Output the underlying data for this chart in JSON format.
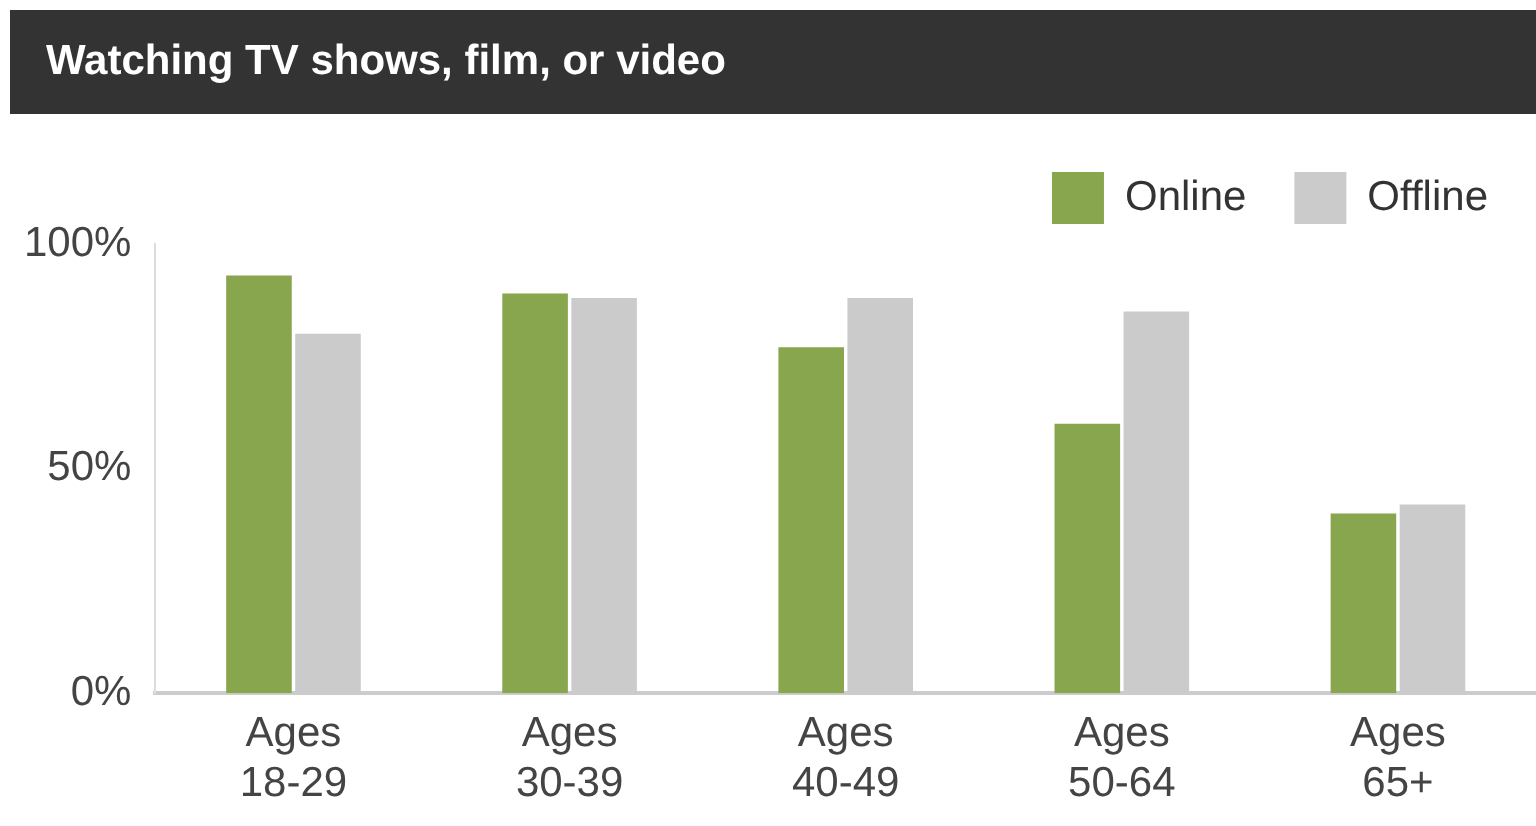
{
  "chart_data": {
    "type": "bar",
    "title": "Watching TV shows, film, or video",
    "categories": [
      "Ages 18-29",
      "Ages 30-39",
      "Ages 40-49",
      "Ages 50-64",
      "Ages 65+"
    ],
    "series": [
      {
        "name": "Online",
        "color": "#87a64d",
        "values": [
          93,
          89,
          77,
          60,
          40
        ]
      },
      {
        "name": "Offline",
        "color": "#cbcbcb",
        "values": [
          80,
          88,
          88,
          85,
          42
        ]
      }
    ],
    "ylim": [
      0,
      100
    ],
    "yticks": [
      {
        "value": 0,
        "label": "0%"
      },
      {
        "value": 50,
        "label": "50%"
      },
      {
        "value": 100,
        "label": "100%"
      }
    ],
    "grid": false,
    "legend": "top right"
  }
}
